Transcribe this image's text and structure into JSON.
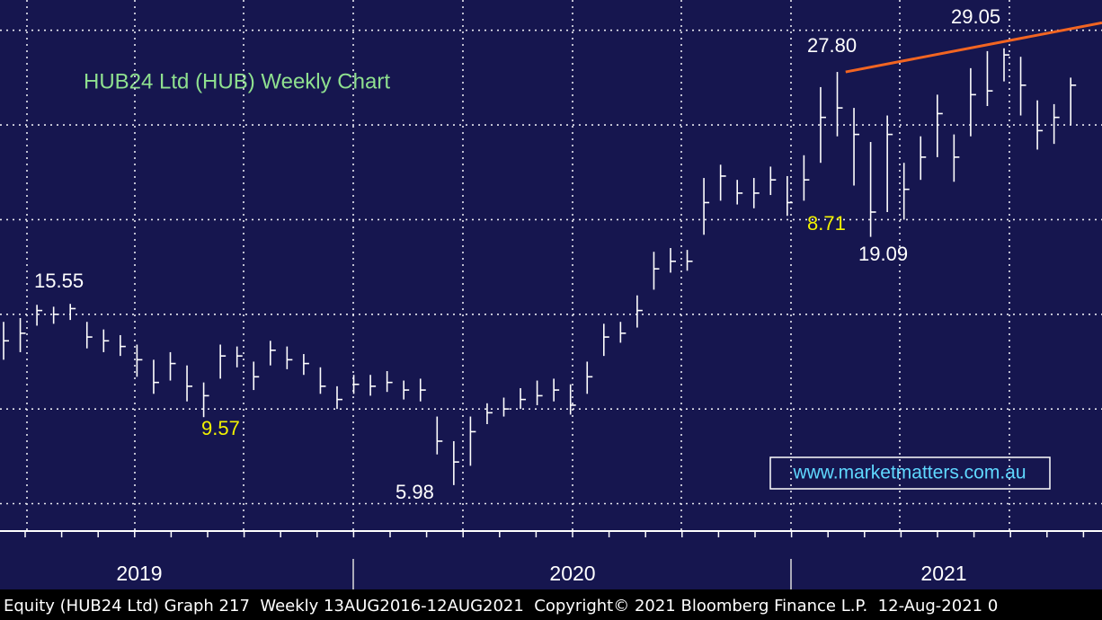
{
  "chart_data": {
    "type": "ohlc",
    "title": "HUB24 Ltd (HUB) Weekly Chart",
    "title_color": "#8fe08f",
    "color": "#ffffff",
    "background": "#16164f",
    "periods": [
      "2019",
      "2020",
      "2021"
    ],
    "ylim": [
      3.6,
      31.6
    ],
    "ygrid": [
      5,
      10,
      15,
      20,
      25,
      30
    ],
    "grid": true,
    "high": [
      14.6,
      14.8,
      15.5,
      15.4,
      15.55,
      14.6,
      14.2,
      13.9,
      13.4,
      12.6,
      13.0,
      12.3,
      11.4,
      13.4,
      13.3,
      12.5,
      13.6,
      13.3,
      12.9,
      12.2,
      11.2,
      11.8,
      11.8,
      12.0,
      11.5,
      11.6,
      9.6,
      8.3,
      9.6,
      10.3,
      10.6,
      11.1,
      11.5,
      11.6,
      11.3,
      12.5,
      14.5,
      14.6,
      16.0,
      18.3,
      18.5,
      18.4,
      22.2,
      22.9,
      22.1,
      22.2,
      22.8,
      22.3,
      23.4,
      27.0,
      27.8,
      25.9,
      24.1,
      25.5,
      23.0,
      24.4,
      26.6,
      24.5,
      28.0,
      28.9,
      29.05,
      28.6,
      26.3,
      26.1,
      27.5
    ],
    "low": [
      12.6,
      13.0,
      14.4,
      14.5,
      14.7,
      13.2,
      13.0,
      12.8,
      11.7,
      10.8,
      11.5,
      10.4,
      9.57,
      11.6,
      12.2,
      11.0,
      12.3,
      12.1,
      11.8,
      10.8,
      10.0,
      10.8,
      10.7,
      10.9,
      10.5,
      10.4,
      7.6,
      5.98,
      7.0,
      9.2,
      9.6,
      10.0,
      10.2,
      10.4,
      9.7,
      10.8,
      12.8,
      13.5,
      14.3,
      16.3,
      17.2,
      17.3,
      19.2,
      21.0,
      20.8,
      20.6,
      21.3,
      20.2,
      21.0,
      23.0,
      24.4,
      21.8,
      19.09,
      20.4,
      20.0,
      22.1,
      23.3,
      22.0,
      24.4,
      26.0,
      27.3,
      25.5,
      23.7,
      24.0,
      25.0
    ],
    "close": [
      13.6,
      14.0,
      15.2,
      15.0,
      15.3,
      13.8,
      13.6,
      13.3,
      12.6,
      11.4,
      12.4,
      11.2,
      10.7,
      12.8,
      12.8,
      11.7,
      13.1,
      12.6,
      12.4,
      11.2,
      10.5,
      11.3,
      11.2,
      11.4,
      11.0,
      11.0,
      8.3,
      7.2,
      8.8,
      9.8,
      10.0,
      10.5,
      10.7,
      11.0,
      10.2,
      11.7,
      13.8,
      14.0,
      15.2,
      17.4,
      17.8,
      17.8,
      20.9,
      22.3,
      21.4,
      21.4,
      22.1,
      20.9,
      22.1,
      25.4,
      25.9,
      24.5,
      20.4,
      24.5,
      21.6,
      23.3,
      25.6,
      23.3,
      26.6,
      26.8,
      28.7,
      27.1,
      24.7,
      25.4,
      27.1
    ],
    "trendline": {
      "values": [
        27.8,
        30.4
      ],
      "color": "#f26522"
    },
    "annotations": [
      {
        "text": "15.55",
        "color": "#ffffff"
      },
      {
        "text": "9.57",
        "color": "#f2f200"
      },
      {
        "text": "5.98",
        "color": "#ffffff"
      },
      {
        "text": "27.80",
        "color": "#ffffff"
      },
      {
        "text": "8.71",
        "color": "#f2f200"
      },
      {
        "text": "19.09",
        "color": "#ffffff"
      },
      {
        "text": "29.05",
        "color": "#ffffff"
      }
    ],
    "watermark": "www.marketmatters.com.au",
    "watermark_color": "#5fd8ff",
    "footer": "Equity (HUB24 Ltd) Graph 217  Weekly 13AUG2016-12AUG2021  Copyright© 2021 Bloomberg Finance L.P.  12-Aug-2021 0"
  }
}
